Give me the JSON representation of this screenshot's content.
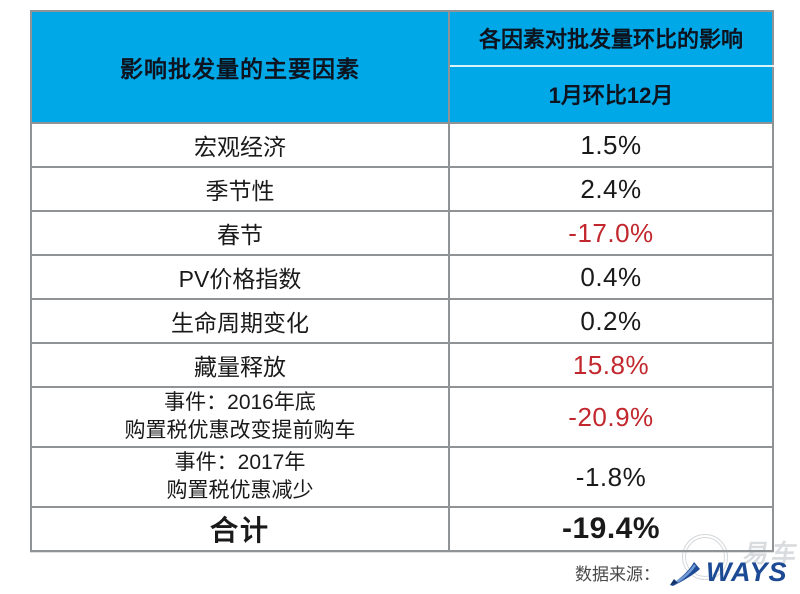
{
  "colors": {
    "header_bg": "#00A8E8",
    "negative_red": "#C1272D",
    "text": "#1a1a1a",
    "border_outer": "#5f6368",
    "border_inner": "#8f9396",
    "logo_blue": "#1d4a94",
    "source_text": "#4a4a4a"
  },
  "table": {
    "header": {
      "col1": "影响批发量的主要因素",
      "col2_top": "各因素对批发量环比的影响",
      "col2_bottom": "1月环比12月"
    },
    "rows": [
      {
        "lines": [
          "宏观经济"
        ],
        "value": "1.5%",
        "red": false,
        "total": false
      },
      {
        "lines": [
          "季节性"
        ],
        "value": "2.4%",
        "red": false,
        "total": false
      },
      {
        "lines": [
          "春节"
        ],
        "value": "-17.0%",
        "red": true,
        "total": false
      },
      {
        "lines": [
          "PV价格指数"
        ],
        "value": "0.4%",
        "red": false,
        "total": false
      },
      {
        "lines": [
          "生命周期变化"
        ],
        "value": "0.2%",
        "red": false,
        "total": false
      },
      {
        "lines": [
          "藏量释放"
        ],
        "value": "15.8%",
        "red": true,
        "total": false
      },
      {
        "lines": [
          "事件：2016年底",
          "购置税优惠改变提前购车"
        ],
        "value": "-20.9%",
        "red": true,
        "total": false
      },
      {
        "lines": [
          "事件：2017年",
          "购置税优惠减少"
        ],
        "value": "-1.8%",
        "red": false,
        "total": false
      },
      {
        "lines": [
          "合计"
        ],
        "value": "-19.4%",
        "red": false,
        "total": true
      }
    ]
  },
  "footer": {
    "source_label": "数据来源：",
    "logo_text": "WAYS",
    "watermark_text": "易车"
  },
  "chart_data": {
    "type": "table",
    "title": "各因素对批发量环比的影响（1月环比12月）",
    "columns": [
      "影响批发量的主要因素",
      "各因素对批发量环比的影响 1月环比12月"
    ],
    "rows": [
      [
        "宏观经济",
        "1.5%"
      ],
      [
        "季节性",
        "2.4%"
      ],
      [
        "春节",
        "-17.0%"
      ],
      [
        "PV价格指数",
        "0.4%"
      ],
      [
        "生命周期变化",
        "0.2%"
      ],
      [
        "藏量释放",
        "15.8%"
      ],
      [
        "事件：2016年底 购置税优惠改变提前购车",
        "-20.9%"
      ],
      [
        "事件：2017年 购置税优惠减少",
        "-1.8%"
      ],
      [
        "合计",
        "-19.4%"
      ]
    ],
    "values_numeric_pct": [
      1.5,
      2.4,
      -17.0,
      0.4,
      0.2,
      15.8,
      -20.9,
      -1.8,
      -19.4
    ],
    "highlighted_red_rows": [
      "春节",
      "藏量释放",
      "事件：2016年底 购置税优惠改变提前购车"
    ],
    "source": "数据来源：WAYS"
  }
}
